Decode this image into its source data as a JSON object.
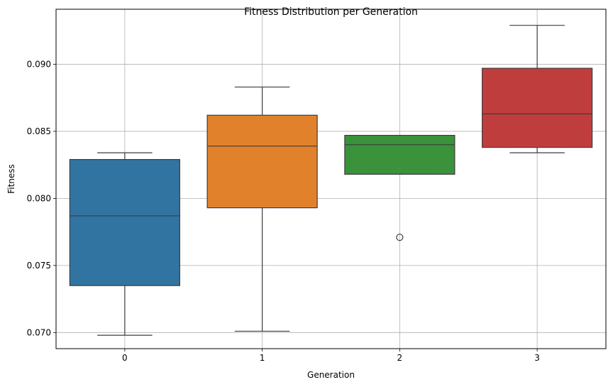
{
  "chart_data": {
    "type": "box",
    "title": "Fitness Distribution per Generation",
    "xlabel": "Generation",
    "ylabel": "Fitness",
    "categories": [
      "0",
      "1",
      "2",
      "3"
    ],
    "ylim": [
      0.0688,
      0.0941
    ],
    "yticks": [
      0.07,
      0.075,
      0.08,
      0.085,
      0.09
    ],
    "ytick_labels": [
      "0.070",
      "0.075",
      "0.080",
      "0.085",
      "0.090"
    ],
    "grid": true,
    "boxes": [
      {
        "category": "0",
        "whisker_low": 0.0698,
        "q1": 0.0735,
        "median": 0.0787,
        "q3": 0.0829,
        "whisker_high": 0.0834,
        "outliers": [],
        "color": "#3274a1"
      },
      {
        "category": "1",
        "whisker_low": 0.0701,
        "q1": 0.0793,
        "median": 0.0839,
        "q3": 0.0862,
        "whisker_high": 0.0883,
        "outliers": [],
        "color": "#e1812c"
      },
      {
        "category": "2",
        "whisker_low": 0.0818,
        "q1": 0.0818,
        "median": 0.084,
        "q3": 0.0847,
        "whisker_high": 0.0847,
        "outliers": [
          0.0771
        ],
        "color": "#3a923a"
      },
      {
        "category": "3",
        "whisker_low": 0.0834,
        "q1": 0.0838,
        "median": 0.0863,
        "q3": 0.0897,
        "whisker_high": 0.0929,
        "outliers": [],
        "color": "#c03d3e"
      }
    ]
  }
}
